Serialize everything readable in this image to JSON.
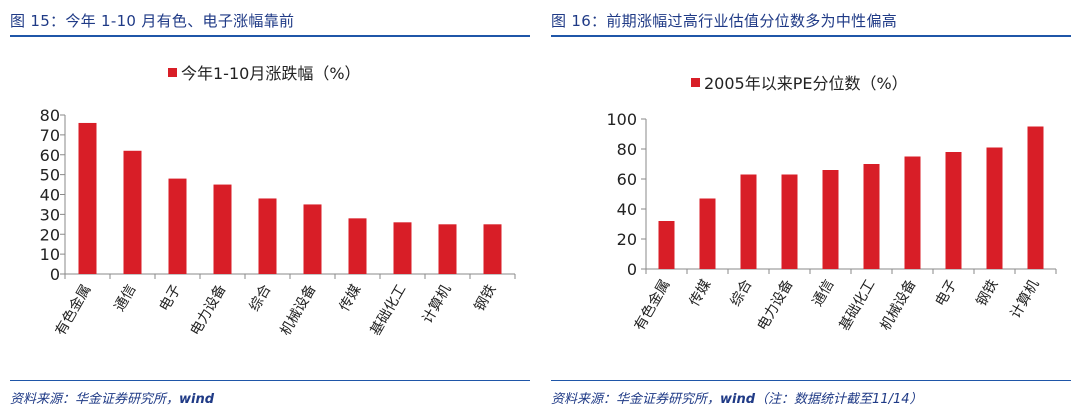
{
  "colors": {
    "bar": "#d81e27",
    "title": "#1f3a86",
    "rule": "#1f56a8",
    "axis": "#8a8a8a"
  },
  "figures": [
    {
      "title": "图 15：今年 1-10 月有色、电子涨幅靠前",
      "source_prefix": "资料来源：华金证券研究所，",
      "source_bold": "wind",
      "source_suffix": ""
    },
    {
      "title": "图 16：前期涨幅过高行业估值分位数多为中性偏高",
      "source_prefix": "资料来源：华金证券研究所，",
      "source_bold": "wind",
      "source_suffix": "（注：数据统计截至11/14）"
    }
  ],
  "chart_data": [
    {
      "type": "bar",
      "legend": "今年1-10月涨跌幅（%）",
      "categories": [
        "有色金属",
        "通信",
        "电子",
        "电力设备",
        "综合",
        "机械设备",
        "传媒",
        "基础化工",
        "计算机",
        "钢铁"
      ],
      "values": [
        76,
        62,
        48,
        45,
        38,
        35,
        28,
        26,
        25,
        25
      ],
      "ylim": [
        0,
        80
      ],
      "yticks": [
        0,
        10,
        20,
        30,
        40,
        50,
        60,
        70,
        80
      ]
    },
    {
      "type": "bar",
      "legend": "2005年以来PE分位数（%）",
      "categories": [
        "有色金属",
        "传媒",
        "综合",
        "电力设备",
        "通信",
        "基础化工",
        "机械设备",
        "电子",
        "钢铁",
        "计算机"
      ],
      "values": [
        32,
        47,
        63,
        63,
        66,
        70,
        75,
        78,
        81,
        95
      ],
      "ylim": [
        0,
        100
      ],
      "yticks": [
        0,
        20,
        40,
        60,
        80,
        100
      ]
    }
  ]
}
